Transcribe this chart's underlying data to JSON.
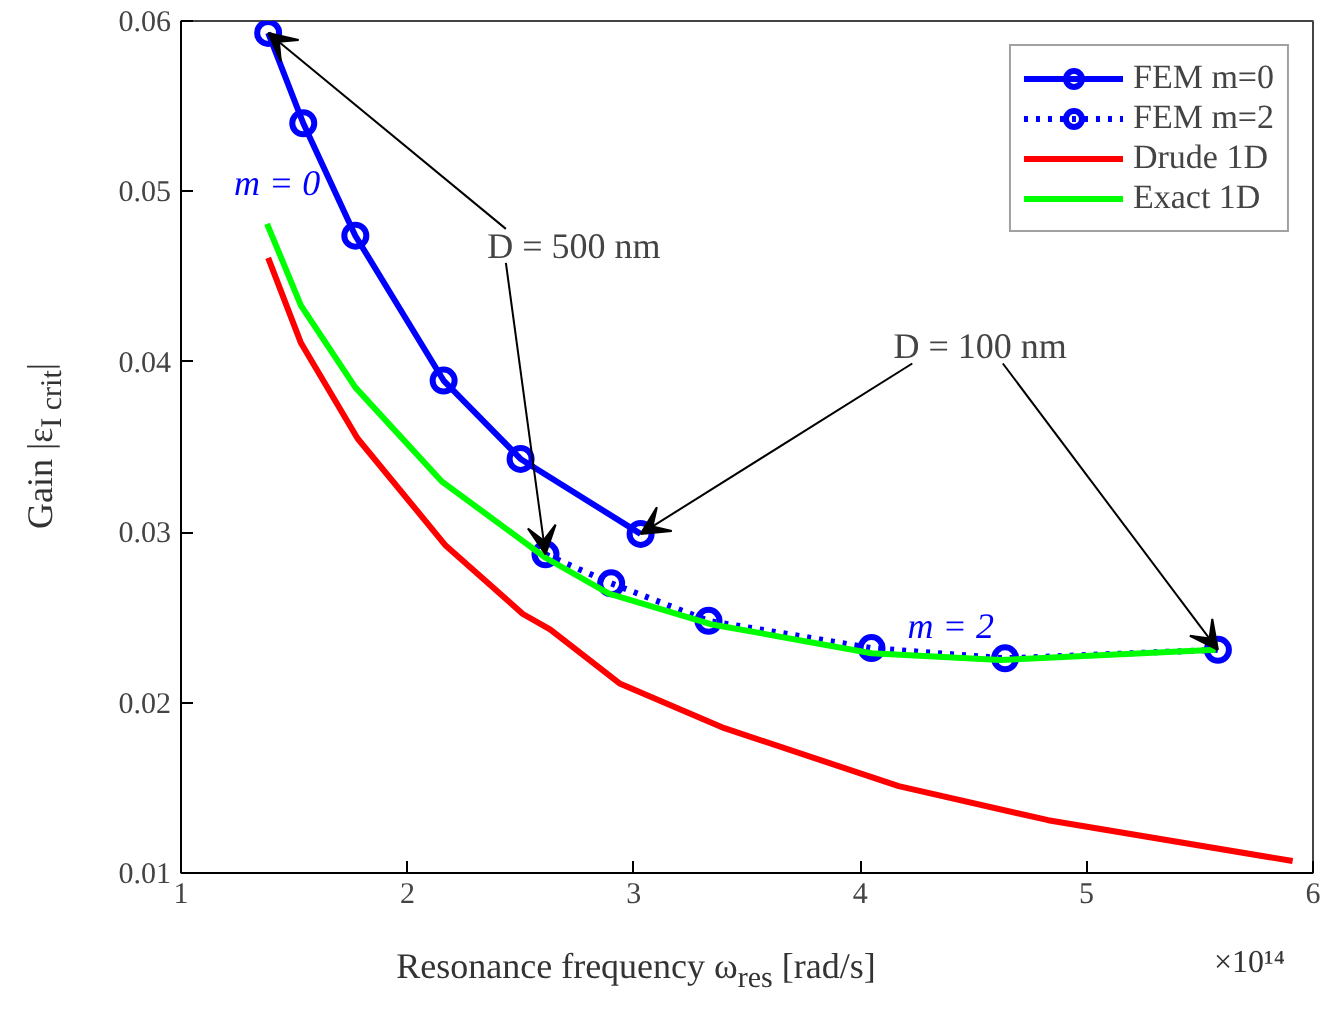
{
  "chart_data": {
    "type": "line",
    "xlabel": "Resonance frequency ω$_{res}$ [rad/s]",
    "ylabel": "Gain |ε$_{I crit}$|",
    "xlim": [
      1,
      6
    ],
    "ylim": [
      0.01,
      0.06
    ],
    "xticks": [
      1,
      2,
      3,
      4,
      5,
      6
    ],
    "yticks": [
      0.01,
      0.02,
      0.03,
      0.04,
      0.05,
      0.06
    ],
    "grid": false,
    "legend": "top right",
    "series": [
      {
        "name": "FEM m=0",
        "color": "#0000ff",
        "marker": "circle",
        "line_style": "solid",
        "x": [
          1.385,
          1.54,
          1.77,
          2.16,
          2.5,
          3.03
        ],
        "values": [
          0.0593,
          0.054,
          0.0474,
          0.0389,
          0.0343,
          0.0299
        ]
      },
      {
        "name": "FEM m=2",
        "color": "#0000ff",
        "marker": "circle",
        "line_style": "dotted",
        "x": [
          2.61,
          2.9,
          3.33,
          4.05,
          4.64,
          5.58
        ],
        "values": [
          0.0287,
          0.027,
          0.0248,
          0.0232,
          0.0226,
          0.0231
        ]
      },
      {
        "name": "Drude 1D",
        "color": "#ff0000",
        "marker": "none",
        "line_style": "solid",
        "x": [
          1.385,
          1.53,
          1.78,
          2.17,
          2.51,
          2.63,
          2.94,
          3.4,
          4.17,
          4.83,
          5.91
        ],
        "values": [
          0.0461,
          0.0411,
          0.0355,
          0.0292,
          0.0252,
          0.0243,
          0.0211,
          0.0185,
          0.0151,
          0.0131,
          0.0107
        ]
      },
      {
        "name": "Exact 1D",
        "color": "#00ff00",
        "marker": "none",
        "line_style": "solid",
        "x": [
          1.38,
          1.53,
          1.77,
          2.15,
          2.61,
          2.89,
          3.34,
          4.05,
          4.62,
          5.57
        ],
        "values": [
          0.0481,
          0.0433,
          0.0385,
          0.033,
          0.0285,
          0.0264,
          0.0246,
          0.0229,
          0.0225,
          0.0231
        ]
      }
    ],
    "annotations": [
      {
        "text": "D = 500 nm",
        "x": 1.385,
        "y": 0.0593
      },
      {
        "text": "D = 100 nm",
        "x": 3.03,
        "y": 0.0299
      },
      "m = 0",
      "m = 2",
      "×10¹⁴"
    ]
  }
}
